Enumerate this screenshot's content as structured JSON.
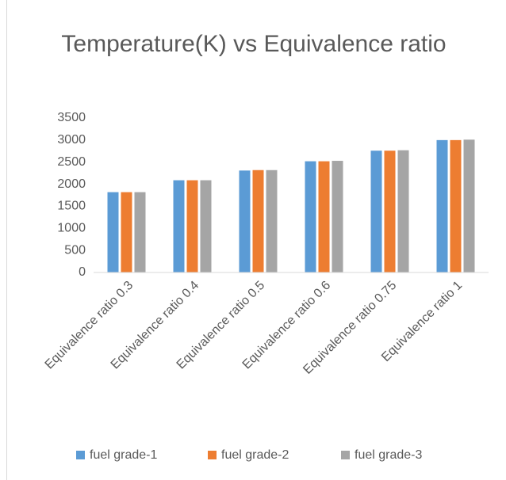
{
  "chart_data": {
    "type": "bar",
    "title": "Temperature(K) vs Equivalence ratio",
    "categories": [
      "Equivalence ratio 0.3",
      "Equivalence ratio 0.4",
      "Equivalence ratio 0.5",
      "Equivalence ratio 0.6",
      "Equivalence ratio 0.75",
      "Equivalence ratio 1"
    ],
    "series": [
      {
        "name": "fuel grade-1",
        "color": "#5b9bd5",
        "values": [
          1820,
          2090,
          2310,
          2520,
          2760,
          3000
        ]
      },
      {
        "name": "fuel grade-2",
        "color": "#ed7d31",
        "values": [
          1820,
          2090,
          2320,
          2520,
          2760,
          3000
        ]
      },
      {
        "name": "fuel grade-3",
        "color": "#a5a5a5",
        "values": [
          1820,
          2090,
          2320,
          2530,
          2770,
          3010
        ]
      }
    ],
    "ylim": [
      0,
      3500
    ],
    "yticks": [
      0,
      500,
      1000,
      1500,
      2000,
      2500,
      3000,
      3500
    ],
    "grid": false,
    "legend": "bottom"
  }
}
